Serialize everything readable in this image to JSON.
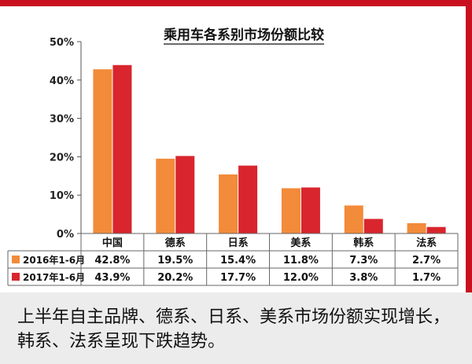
{
  "chart_data": {
    "type": "bar",
    "title": "乘用车各系别市场份额比较",
    "categories": [
      "中国",
      "德系",
      "日系",
      "美系",
      "韩系",
      "法系"
    ],
    "series": [
      {
        "name": "2016年1-6月",
        "values": [
          42.8,
          19.5,
          15.4,
          11.8,
          7.3,
          2.7
        ],
        "labels": [
          "42.8%",
          "19.5%",
          "15.4%",
          "11.8%",
          "7.3%",
          "2.7%"
        ],
        "color": "#f28b3a"
      },
      {
        "name": "2017年1-6月",
        "values": [
          43.9,
          20.2,
          17.7,
          12.0,
          3.8,
          1.7
        ],
        "labels": [
          "43.9%",
          "20.2%",
          "17.7%",
          "12.0%",
          "3.8%",
          "1.7%"
        ],
        "color": "#d9252d"
      }
    ],
    "yticks": [
      "0%",
      "10%",
      "20%",
      "30%",
      "40%",
      "50%"
    ],
    "ylim": [
      0,
      50
    ],
    "grid": false,
    "legend": "data-table below chart"
  },
  "caption": "上半年自主品牌、德系、日系、美系市场份额实现增长，韩系、法系呈现下跌趋势。",
  "colors": {
    "accent_border": "#c8101f",
    "caption_bg": "#ececec"
  }
}
